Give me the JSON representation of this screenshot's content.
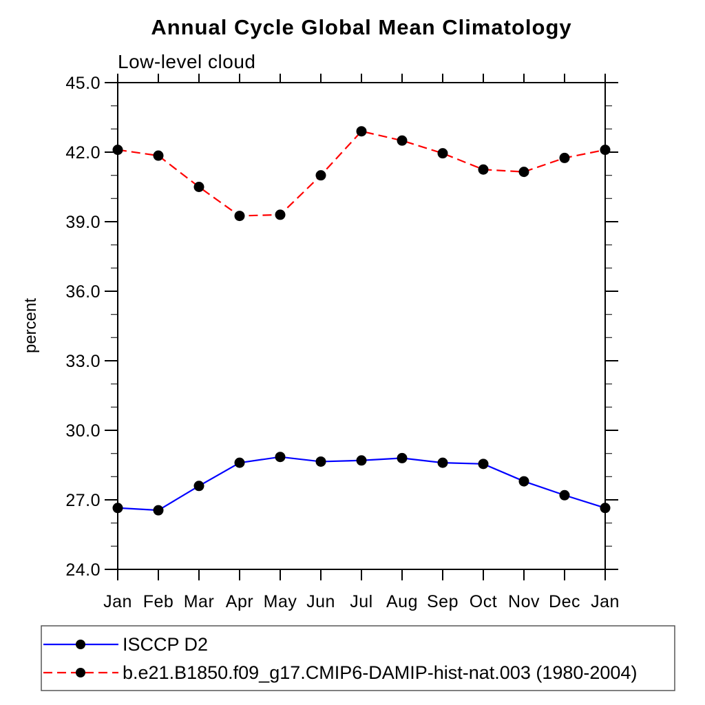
{
  "page": {
    "background": "#ffffff",
    "frame_color": "#000000"
  },
  "chart_data": {
    "type": "line",
    "title": "Annual Cycle Global Mean Climatology",
    "subtitle": "Low-level cloud",
    "ylabel": "percent",
    "xlabel": "",
    "categories": [
      "Jan",
      "Feb",
      "Mar",
      "Apr",
      "May",
      "Jun",
      "Jul",
      "Aug",
      "Sep",
      "Oct",
      "Nov",
      "Dec",
      "Jan"
    ],
    "ylim": [
      24.0,
      45.0
    ],
    "ytick_major_values": [
      24,
      27,
      30,
      33,
      36,
      39,
      42,
      45
    ],
    "ytick_major_labels": [
      "24.0",
      "27.0",
      "30.0",
      "33.0",
      "36.0",
      "39.0",
      "42.0",
      "45.0"
    ],
    "ytick_minor_step": 1.0,
    "grid": false,
    "axis_color": "#000000",
    "marker_color": "#000000",
    "legend_position": "bottom-left",
    "series": [
      {
        "name": "ISCCP D2",
        "color": "#0000ff",
        "line_style": "solid",
        "marker": "filled-circle",
        "values": [
          26.65,
          26.55,
          27.6,
          28.6,
          28.85,
          28.65,
          28.7,
          28.8,
          28.6,
          28.55,
          27.8,
          27.2,
          26.65
        ]
      },
      {
        "name": "b.e21.B1850.f09_g17.CMIP6-DAMIP-hist-nat.003 (1980-2004)",
        "color": "#ff0000",
        "line_style": "dashed",
        "marker": "filled-circle",
        "values": [
          42.1,
          41.85,
          40.5,
          39.25,
          39.3,
          41.0,
          42.9,
          42.5,
          41.95,
          41.25,
          41.15,
          41.75,
          42.1
        ]
      }
    ]
  }
}
